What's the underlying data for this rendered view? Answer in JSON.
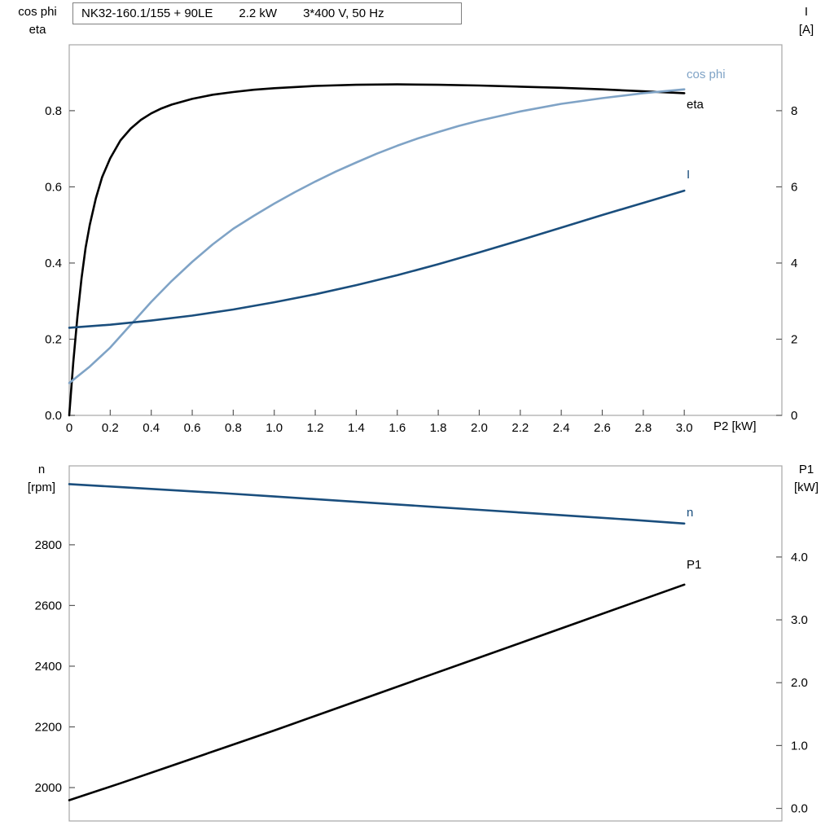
{
  "colors": {
    "frame": "#a6a6a6",
    "tick": "#595959",
    "text": "#000000",
    "eta_black": "#000000",
    "cos_phi_blue": "#7fa3c6",
    "dark_blue": "#1a4e7d"
  },
  "chart_data": [
    {
      "id": "top",
      "type": "line",
      "title": "NK32-160.1/155 + 90LE   2.2 kW   3*400 V, 50 Hz",
      "title_parts": [
        "NK32-160.1/155 + 90LE",
        "2.2 kW",
        "3*400 V, 50 Hz"
      ],
      "x_axis": {
        "label": "P2 [kW]",
        "range": [
          0,
          3.476
        ],
        "show_tick_labels": true,
        "ticks": [
          {
            "label": "0",
            "value": 0
          },
          {
            "label": "0.2",
            "value": 0.2
          },
          {
            "label": "0.4",
            "value": 0.4
          },
          {
            "label": "0.6",
            "value": 0.6
          },
          {
            "label": "0.8",
            "value": 0.8
          },
          {
            "label": "1.0",
            "value": 1.0
          },
          {
            "label": "1.2",
            "value": 1.2
          },
          {
            "label": "1.4",
            "value": 1.4
          },
          {
            "label": "1.6",
            "value": 1.6
          },
          {
            "label": "1.8",
            "value": 1.8
          },
          {
            "label": "2.0",
            "value": 2.0
          },
          {
            "label": "2.2",
            "value": 2.2
          },
          {
            "label": "2.4",
            "value": 2.4
          },
          {
            "label": "2.6",
            "value": 2.6
          },
          {
            "label": "2.8",
            "value": 2.8
          },
          {
            "label": "3.0",
            "value": 3.0
          }
        ]
      },
      "left_axis": {
        "header_lines": [
          "cos phi",
          "eta"
        ],
        "range": [
          0,
          0.973
        ],
        "ticks": [
          {
            "label": "0.0",
            "value": 0.0
          },
          {
            "label": "0.2",
            "value": 0.2
          },
          {
            "label": "0.4",
            "value": 0.4
          },
          {
            "label": "0.6",
            "value": 0.6
          },
          {
            "label": "0.8",
            "value": 0.8
          }
        ]
      },
      "right_axis": {
        "header_lines": [
          "I",
          "[A]"
        ],
        "range": [
          0,
          9.73
        ],
        "ticks": [
          {
            "label": "0",
            "value": 0
          },
          {
            "label": "2",
            "value": 2
          },
          {
            "label": "4",
            "value": 4
          },
          {
            "label": "6",
            "value": 6
          },
          {
            "label": "8",
            "value": 8
          }
        ]
      },
      "series": [
        {
          "id": "eta",
          "label": "eta",
          "axis": "left",
          "color": "#000000",
          "width": 2.6,
          "points": [
            [
              0,
              0
            ],
            [
              0.02,
              0.14
            ],
            [
              0.04,
              0.26
            ],
            [
              0.06,
              0.36
            ],
            [
              0.08,
              0.44
            ],
            [
              0.1,
              0.5
            ],
            [
              0.13,
              0.57
            ],
            [
              0.16,
              0.625
            ],
            [
              0.2,
              0.675
            ],
            [
              0.25,
              0.722
            ],
            [
              0.3,
              0.753
            ],
            [
              0.35,
              0.776
            ],
            [
              0.4,
              0.793
            ],
            [
              0.45,
              0.806
            ],
            [
              0.5,
              0.816
            ],
            [
              0.6,
              0.831
            ],
            [
              0.7,
              0.842
            ],
            [
              0.8,
              0.849
            ],
            [
              0.9,
              0.855
            ],
            [
              1.0,
              0.859
            ],
            [
              1.2,
              0.865
            ],
            [
              1.4,
              0.868
            ],
            [
              1.6,
              0.869
            ],
            [
              1.8,
              0.868
            ],
            [
              2.0,
              0.866
            ],
            [
              2.2,
              0.863
            ],
            [
              2.4,
              0.86
            ],
            [
              2.6,
              0.856
            ],
            [
              2.8,
              0.851
            ],
            [
              3.0,
              0.846
            ]
          ]
        },
        {
          "id": "cos-phi",
          "label": "cos phi",
          "axis": "left",
          "color": "#7fa3c6",
          "width": 2.6,
          "points": [
            [
              0,
              0.085
            ],
            [
              0.1,
              0.128
            ],
            [
              0.2,
              0.178
            ],
            [
              0.3,
              0.238
            ],
            [
              0.4,
              0.298
            ],
            [
              0.5,
              0.353
            ],
            [
              0.6,
              0.403
            ],
            [
              0.7,
              0.449
            ],
            [
              0.8,
              0.49
            ],
            [
              0.9,
              0.524
            ],
            [
              1.0,
              0.556
            ],
            [
              1.1,
              0.586
            ],
            [
              1.2,
              0.614
            ],
            [
              1.3,
              0.64
            ],
            [
              1.4,
              0.664
            ],
            [
              1.5,
              0.687
            ],
            [
              1.6,
              0.708
            ],
            [
              1.7,
              0.727
            ],
            [
              1.8,
              0.744
            ],
            [
              1.9,
              0.76
            ],
            [
              2.0,
              0.774
            ],
            [
              2.2,
              0.798
            ],
            [
              2.4,
              0.818
            ],
            [
              2.6,
              0.833
            ],
            [
              2.8,
              0.846
            ],
            [
              3.0,
              0.856
            ]
          ]
        },
        {
          "id": "current",
          "label": "I",
          "axis": "right",
          "color": "#1a4e7d",
          "width": 2.6,
          "points": [
            [
              0,
              2.3
            ],
            [
              0.2,
              2.38
            ],
            [
              0.4,
              2.49
            ],
            [
              0.6,
              2.62
            ],
            [
              0.8,
              2.78
            ],
            [
              1.0,
              2.97
            ],
            [
              1.2,
              3.18
            ],
            [
              1.4,
              3.42
            ],
            [
              1.6,
              3.68
            ],
            [
              1.8,
              3.97
            ],
            [
              2.0,
              4.28
            ],
            [
              2.2,
              4.6
            ],
            [
              2.4,
              4.93
            ],
            [
              2.6,
              5.26
            ],
            [
              2.8,
              5.58
            ],
            [
              3.0,
              5.9
            ]
          ]
        }
      ]
    },
    {
      "id": "bottom",
      "type": "line",
      "title": "",
      "x_axis": {
        "label": "",
        "range": [
          0,
          3.476
        ],
        "show_tick_labels": false,
        "ticks": []
      },
      "left_axis": {
        "header_lines": [
          "n",
          "[rpm]"
        ],
        "range": [
          1890,
          3060
        ],
        "ticks": [
          {
            "label": "2000",
            "value": 2000
          },
          {
            "label": "2200",
            "value": 2200
          },
          {
            "label": "2400",
            "value": 2400
          },
          {
            "label": "2600",
            "value": 2600
          },
          {
            "label": "2800",
            "value": 2800
          }
        ]
      },
      "right_axis": {
        "header_lines": [
          "P1",
          "[kW]"
        ],
        "range": [
          -0.2,
          5.45
        ],
        "ticks": [
          {
            "label": "0.0",
            "value": 0.0
          },
          {
            "label": "1.0",
            "value": 1.0
          },
          {
            "label": "2.0",
            "value": 2.0
          },
          {
            "label": "3.0",
            "value": 3.0
          },
          {
            "label": "4.0",
            "value": 4.0
          }
        ]
      },
      "series": [
        {
          "id": "speed",
          "label": "n",
          "axis": "left",
          "color": "#1a4e7d",
          "width": 2.6,
          "points": [
            [
              0,
              3000
            ],
            [
              0.25,
              2990
            ],
            [
              0.5,
              2980
            ],
            [
              0.75,
              2970
            ],
            [
              1.0,
              2959
            ],
            [
              1.25,
              2948
            ],
            [
              1.5,
              2937
            ],
            [
              1.75,
              2926
            ],
            [
              2.0,
              2915
            ],
            [
              2.25,
              2904
            ],
            [
              2.5,
              2893
            ],
            [
              2.75,
              2882
            ],
            [
              3.0,
              2870
            ]
          ]
        },
        {
          "id": "input-power",
          "label": "P1",
          "axis": "right",
          "color": "#000000",
          "width": 2.6,
          "points": [
            [
              0,
              0.13
            ],
            [
              0.25,
              0.4
            ],
            [
              0.5,
              0.68
            ],
            [
              0.75,
              0.96
            ],
            [
              1.0,
              1.24
            ],
            [
              1.25,
              1.53
            ],
            [
              1.5,
              1.82
            ],
            [
              1.75,
              2.11
            ],
            [
              2.0,
              2.4
            ],
            [
              2.25,
              2.69
            ],
            [
              2.5,
              2.98
            ],
            [
              2.75,
              3.27
            ],
            [
              3.0,
              3.56
            ]
          ]
        }
      ]
    }
  ]
}
